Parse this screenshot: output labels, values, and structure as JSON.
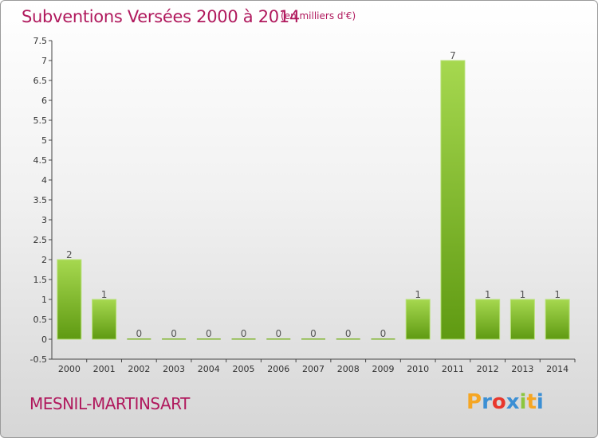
{
  "header": {
    "title": "Subventions Versées 2000 à 2014",
    "unit": "(en milliers d'€)"
  },
  "footer": {
    "commune": "MESNIL-MARTINSART",
    "logo_letters": [
      "P",
      "r",
      "o",
      "x",
      "i",
      "t",
      "i"
    ],
    "logo_colors": [
      "#f5a623",
      "#3b8fd4",
      "#e8372c",
      "#3b8fd4",
      "#8cc63f",
      "#f5a623",
      "#3b8fd4"
    ]
  },
  "colors": {
    "bar_light": "#9fd24a",
    "bar_dark": "#5f9a12",
    "axis_text": "#333333",
    "grid": "#cfcfcf"
  },
  "chart_data": {
    "type": "bar",
    "categories": [
      "2000",
      "2001",
      "2002",
      "2003",
      "2004",
      "2005",
      "2006",
      "2007",
      "2008",
      "2009",
      "2010",
      "2011",
      "2012",
      "2013",
      "2014"
    ],
    "values": [
      2,
      1,
      0,
      0,
      0,
      0,
      0,
      0,
      0,
      0,
      1,
      7,
      1,
      1,
      1
    ],
    "data_labels": [
      "2",
      "1",
      "0",
      "0",
      "0",
      "0",
      "0",
      "0",
      "0",
      "0",
      "1",
      "7",
      "1",
      "1",
      "1"
    ],
    "yticks": [
      "-0.5",
      "0",
      "0.5",
      "1",
      "1.5",
      "2",
      "2.5",
      "3",
      "3.5",
      "4",
      "4.5",
      "5",
      "5.5",
      "6",
      "6.5",
      "7",
      "7.5"
    ],
    "ylim": [
      -0.5,
      7.5
    ],
    "grid": false,
    "legend": "none"
  }
}
